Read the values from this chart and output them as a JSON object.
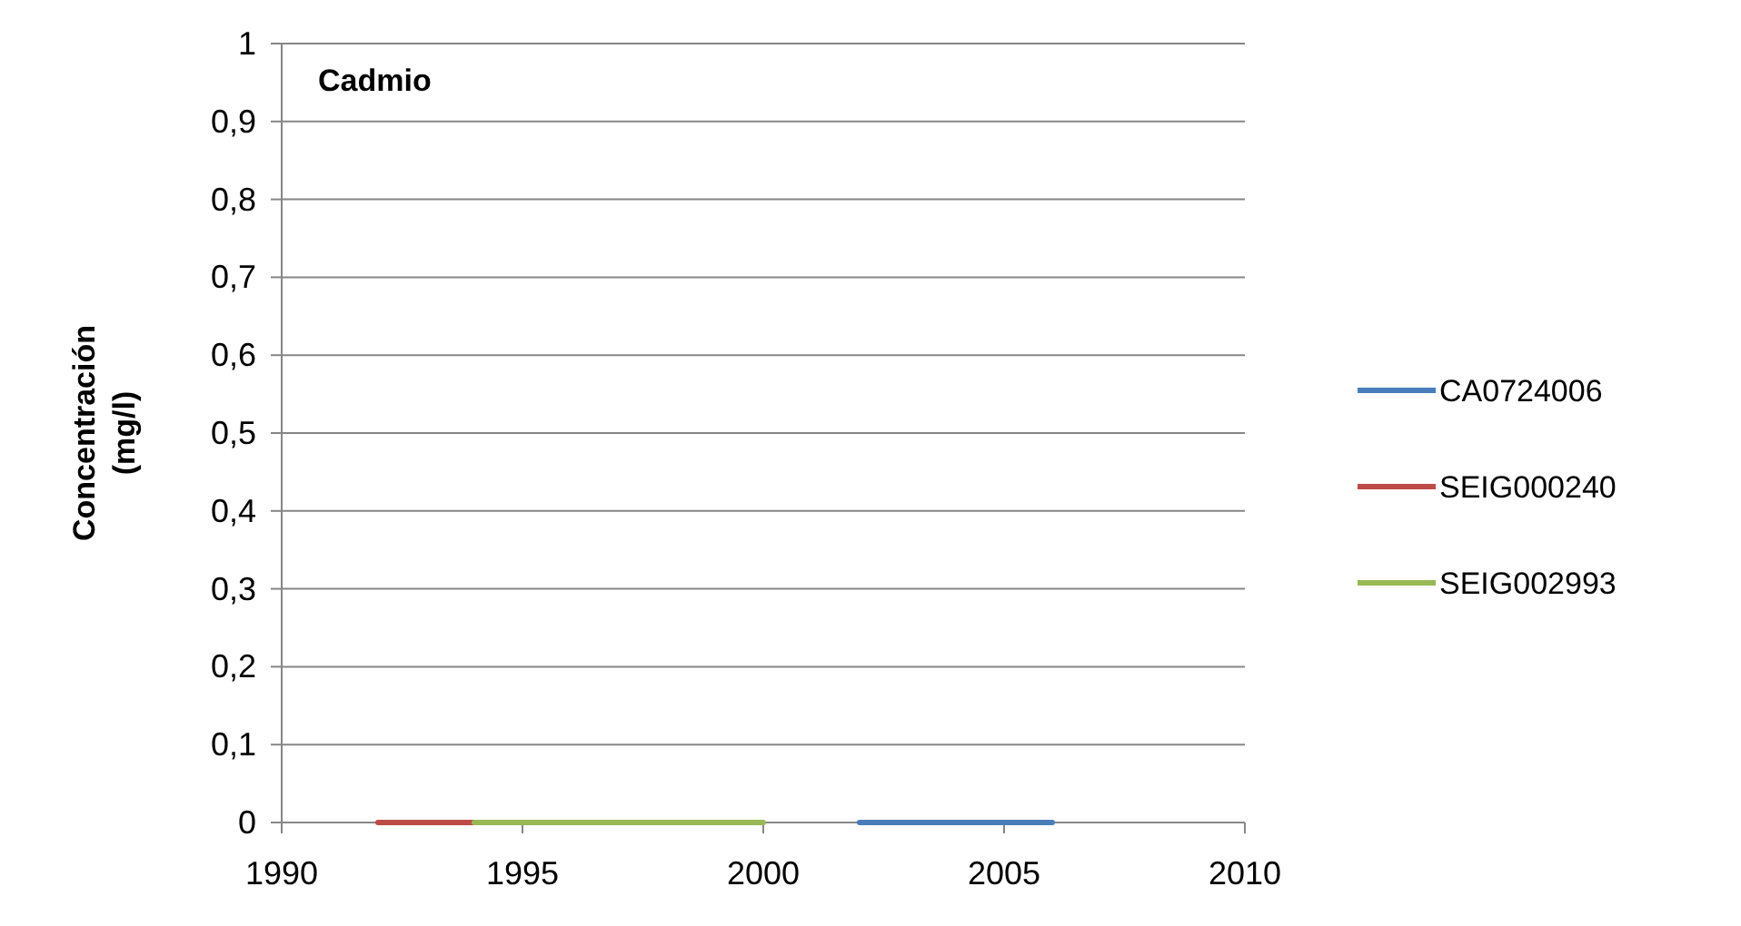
{
  "chart_data": {
    "type": "line",
    "title": "Cadmio",
    "ylabel": "Concentración (mg/l)",
    "xlim": [
      1990,
      2010
    ],
    "xticks": [
      1990,
      1995,
      2000,
      2005,
      2010
    ],
    "ylim": [
      0,
      1
    ],
    "yticks": [
      {
        "value": 0,
        "label": "0"
      },
      {
        "value": 0.1,
        "label": "0,1"
      },
      {
        "value": 0.2,
        "label": "0,2"
      },
      {
        "value": 0.3,
        "label": "0,3"
      },
      {
        "value": 0.4,
        "label": "0,4"
      },
      {
        "value": 0.5,
        "label": "0,5"
      },
      {
        "value": 0.6,
        "label": "0,6"
      },
      {
        "value": 0.7,
        "label": "0,7"
      },
      {
        "value": 0.8,
        "label": "0,8"
      },
      {
        "value": 0.9,
        "label": "0,9"
      },
      {
        "value": 1,
        "label": "1"
      }
    ],
    "grid": "y",
    "legend": "right",
    "marker": "none",
    "series": [
      {
        "name": "CA0724006",
        "color": "#4a7ebb",
        "x": [
          2002,
          2006
        ],
        "values": [
          0,
          0
        ]
      },
      {
        "name": "SEIG000240",
        "color": "#be4b48",
        "x": [
          1992,
          1994
        ],
        "values": [
          0,
          0
        ]
      },
      {
        "name": "SEIG002993",
        "color": "#98b954",
        "x": [
          1994,
          2000
        ],
        "values": [
          0,
          0
        ]
      }
    ]
  }
}
